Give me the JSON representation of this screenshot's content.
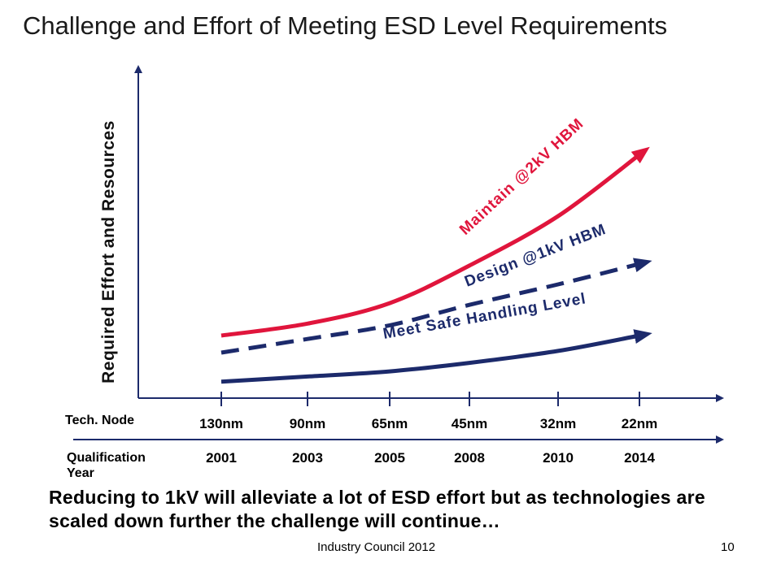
{
  "title": "Challenge and Effort of Meeting ESD Level Requirements",
  "summary": "Reducing to 1kV will alleviate a lot of ESD effort but as technologies are scaled down further the challenge will continue…",
  "footer": "Industry Council 2012",
  "page_number": "10",
  "chart_data": {
    "type": "line",
    "ylabel": "Required Effort and Resources",
    "x_axis_labels": [
      "Tech. Node",
      "Qualification Year"
    ],
    "categories": [
      "130nm",
      "90nm",
      "65nm",
      "45nm",
      "32nm",
      "22nm"
    ],
    "years": [
      "2001",
      "2003",
      "2005",
      "2008",
      "2010",
      "2014"
    ],
    "series": [
      {
        "name": "Maintain @2kV HBM",
        "color": "#e0153c",
        "style": "solid",
        "values": [
          1.0,
          1.7,
          2.9,
          5.1,
          8.0,
          11.6
        ]
      },
      {
        "name": "Design @1kV HBM",
        "color": "#1c2a6b",
        "style": "dashed",
        "values": [
          0.0,
          0.8,
          1.6,
          2.8,
          4.0,
          5.2
        ]
      },
      {
        "name": "Meet Safe Handling Level",
        "color": "#1c2a6b",
        "style": "solid",
        "values": [
          -1.7,
          -1.4,
          -1.1,
          -0.6,
          0.1,
          1.0
        ]
      }
    ],
    "grid": false,
    "legend": "none (series labelled inline)"
  }
}
